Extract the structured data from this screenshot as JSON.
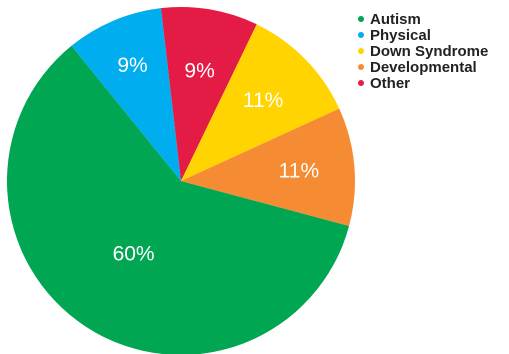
{
  "chart_data": {
    "type": "pie",
    "title": "",
    "legend_position": "top-right",
    "slices": [
      {
        "label": "Autism",
        "value": 60,
        "display": "60%",
        "color": "#00A651"
      },
      {
        "label": "Physical",
        "value": 9,
        "display": "9%",
        "color": "#00AEEF"
      },
      {
        "label": "Other",
        "value": 9,
        "display": "9%",
        "color": "#E31B45"
      },
      {
        "label": "Down Syndrome",
        "value": 11,
        "display": "11%",
        "color": "#FFD400"
      },
      {
        "label": "Developmental",
        "value": 11,
        "display": "11%",
        "color": "#F58B32"
      }
    ],
    "legend": [
      {
        "label": "Autism",
        "color": "#00A651"
      },
      {
        "label": "Physical",
        "color": "#00AEEF"
      },
      {
        "label": "Down Syndrome",
        "color": "#FFD400"
      },
      {
        "label": "Developmental",
        "color": "#F58B32"
      },
      {
        "label": "Other",
        "color": "#E31B45"
      }
    ]
  }
}
